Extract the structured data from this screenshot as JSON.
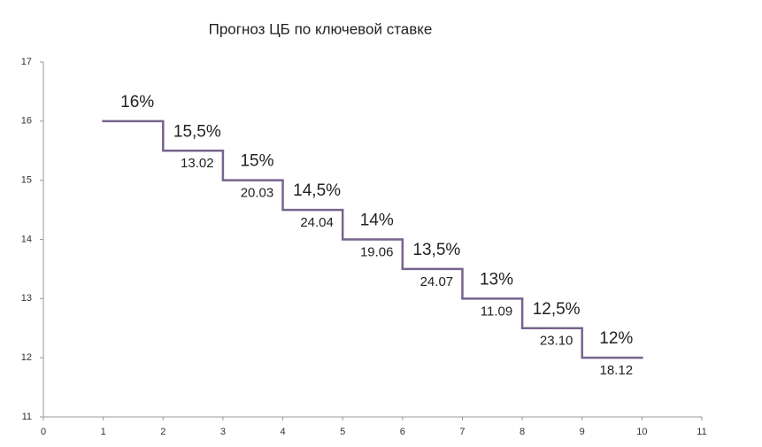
{
  "chart_data": {
    "type": "step",
    "title": "Прогноз ЦБ по ключевой ставке",
    "x_start": [
      1,
      2,
      3,
      4,
      5,
      6,
      7,
      8,
      9
    ],
    "x_end": [
      2,
      3,
      4,
      5,
      6,
      7,
      8,
      9,
      10
    ],
    "values": [
      16,
      15.5,
      15,
      14.5,
      14,
      13.5,
      13,
      12.5,
      12
    ],
    "value_labels": [
      "16%",
      "15,5%",
      "15%",
      "14,5%",
      "14%",
      "13,5%",
      "13%",
      "12,5%",
      "12%"
    ],
    "dates": [
      null,
      "13.02",
      "20.03",
      "24.04",
      "19.06",
      "24.07",
      "11.09",
      "23.10",
      "18.12"
    ],
    "color": "#77648d",
    "xlim": [
      0,
      11
    ],
    "xticks": [
      0,
      1,
      2,
      3,
      4,
      5,
      6,
      7,
      8,
      9,
      10,
      11
    ],
    "ylim": [
      11,
      17
    ],
    "yticks": [
      11,
      12,
      13,
      14,
      15,
      16,
      17
    ]
  }
}
